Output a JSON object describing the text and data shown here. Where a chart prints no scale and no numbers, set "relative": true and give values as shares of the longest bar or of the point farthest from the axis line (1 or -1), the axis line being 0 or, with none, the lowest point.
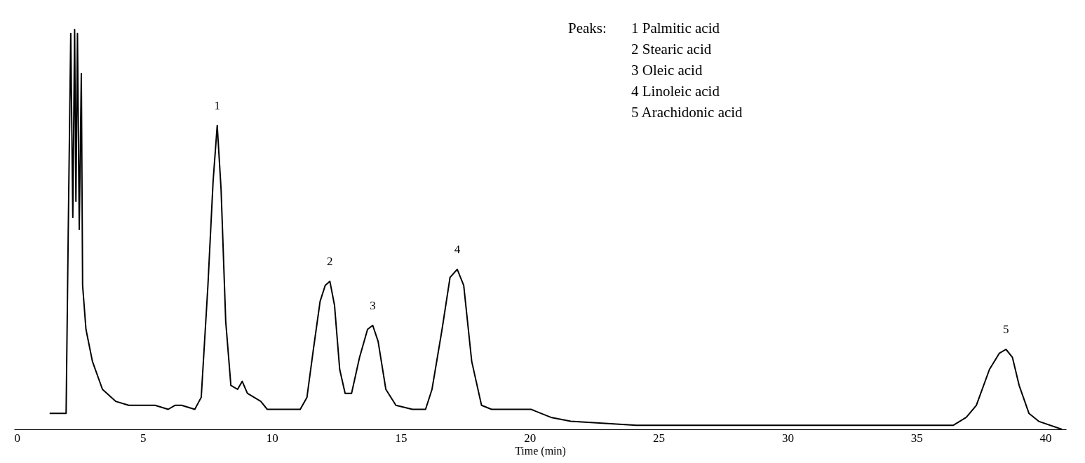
{
  "chart_data": {
    "type": "line",
    "relative": true,
    "xlabel": "Time (min)",
    "xlim": [
      0,
      40.8
    ],
    "xticks": [
      0,
      5,
      10,
      15,
      20,
      25,
      30,
      35,
      40
    ],
    "grid": false,
    "marker": "none",
    "line_style": "solid",
    "x": [
      1.38,
      2.02,
      2.1,
      2.2,
      2.28,
      2.35,
      2.4,
      2.46,
      2.53,
      2.61,
      2.66,
      2.79,
      3.04,
      3.43,
      3.94,
      4.45,
      4.96,
      5.22,
      5.47,
      5.98,
      6.24,
      6.5,
      7.01,
      7.26,
      7.52,
      7.72,
      7.88,
      8.03,
      8.21,
      8.41,
      8.67,
      8.85,
      9.05,
      9.31,
      9.57,
      9.82,
      10.33,
      10.84,
      11.1,
      11.36,
      11.61,
      11.87,
      12.07,
      12.25,
      12.43,
      12.63,
      12.84,
      13.09,
      13.4,
      13.71,
      13.91,
      14.12,
      14.42,
      14.81,
      15.45,
      15.96,
      16.21,
      16.6,
      16.91,
      17.19,
      17.44,
      17.75,
      18.13,
      18.52,
      19.28,
      20.05,
      20.82,
      21.59,
      24.14,
      26.7,
      29.26,
      31.82,
      34.37,
      36.42,
      36.93,
      37.32,
      37.83,
      38.21,
      38.47,
      38.72,
      38.98,
      39.36,
      39.74,
      40.64
    ],
    "series": [
      {
        "color": "#000000",
        "values": [
          0.04,
          0.04,
          0.48,
          0.99,
          0.53,
          1.0,
          0.57,
          0.99,
          0.5,
          0.89,
          0.36,
          0.25,
          0.17,
          0.1,
          0.07,
          0.06,
          0.06,
          0.06,
          0.06,
          0.05,
          0.06,
          0.06,
          0.05,
          0.08,
          0.36,
          0.62,
          0.76,
          0.6,
          0.27,
          0.11,
          0.1,
          0.12,
          0.09,
          0.08,
          0.07,
          0.05,
          0.05,
          0.05,
          0.05,
          0.08,
          0.2,
          0.32,
          0.36,
          0.37,
          0.31,
          0.15,
          0.09,
          0.09,
          0.18,
          0.25,
          0.26,
          0.22,
          0.1,
          0.06,
          0.05,
          0.05,
          0.1,
          0.25,
          0.38,
          0.4,
          0.36,
          0.17,
          0.06,
          0.05,
          0.05,
          0.05,
          0.03,
          0.02,
          0.01,
          0.01,
          0.01,
          0.01,
          0.01,
          0.01,
          0.03,
          0.06,
          0.15,
          0.19,
          0.2,
          0.18,
          0.11,
          0.04,
          0.02,
          0.0
        ]
      }
    ],
    "annotations": [
      {
        "text": "1",
        "x": 7.88,
        "y": 0.76
      },
      {
        "text": "2",
        "x": 12.25,
        "y": 0.37
      },
      {
        "text": "3",
        "x": 13.91,
        "y": 0.26
      },
      {
        "text": "4",
        "x": 17.19,
        "y": 0.4
      },
      {
        "text": "5",
        "x": 38.47,
        "y": 0.2
      },
      "Peaks:",
      "1  Palmitic acid",
      "2  Stearic acid",
      "3  Oleic acid",
      "4  Linoleic acid",
      "5  Arachidonic acid"
    ]
  }
}
